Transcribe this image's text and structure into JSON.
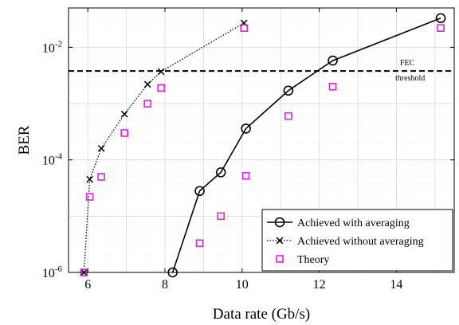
{
  "chart_data": {
    "type": "line",
    "xlabel": "Data rate (Gb/s)",
    "ylabel": "BER",
    "xlim": [
      5.5,
      15.5
    ],
    "ylim": [
      1e-06,
      0.05
    ],
    "yscale": "log",
    "xticks": [
      6,
      8,
      10,
      12,
      14
    ],
    "xtick_labels": [
      "6",
      "8",
      "10",
      "12",
      "14"
    ],
    "yticks": [
      1e-06,
      0.0001,
      0.01
    ],
    "ytick_labels": [
      {
        "base": "10",
        "exp": "-6"
      },
      {
        "base": "10",
        "exp": "-4"
      },
      {
        "base": "10",
        "exp": "-2"
      }
    ],
    "grid": true,
    "legend_position": "bottom-right",
    "series": [
      {
        "name": "Achieved with averaging",
        "color": "#000000",
        "line_style": "solid",
        "marker": "circle",
        "x": [
          8.2,
          8.9,
          9.45,
          10.1,
          11.2,
          12.35,
          15.15
        ],
        "y": [
          1e-06,
          2.8e-05,
          6e-05,
          0.00036,
          0.0017,
          0.0058,
          0.033
        ]
      },
      {
        "name": "Achieved without averaging",
        "color": "#000000",
        "line_style": "dotted",
        "marker": "x",
        "x": [
          5.9,
          6.05,
          6.35,
          6.95,
          7.55,
          7.9,
          10.05
        ],
        "y": [
          1e-06,
          4.5e-05,
          0.00016,
          0.00065,
          0.0022,
          0.0037,
          0.027
        ]
      },
      {
        "name": "Theory",
        "color": "#e020e0",
        "line_style": "none",
        "marker": "square",
        "x": [
          5.9,
          6.05,
          6.35,
          6.95,
          7.55,
          7.9,
          8.9,
          9.45,
          10.05,
          10.1,
          11.2,
          12.35,
          15.15
        ],
        "y": [
          1e-06,
          2.2e-05,
          5e-05,
          0.0003,
          0.001,
          0.0019,
          3.3e-06,
          1e-05,
          0.022,
          5.2e-05,
          0.0006,
          0.002,
          0.022
        ]
      }
    ],
    "annotations": [
      {
        "type": "hline",
        "y": 0.0038,
        "line_style": "dashed",
        "label_lines": [
          "FEC",
          "threshold"
        ]
      }
    ]
  }
}
